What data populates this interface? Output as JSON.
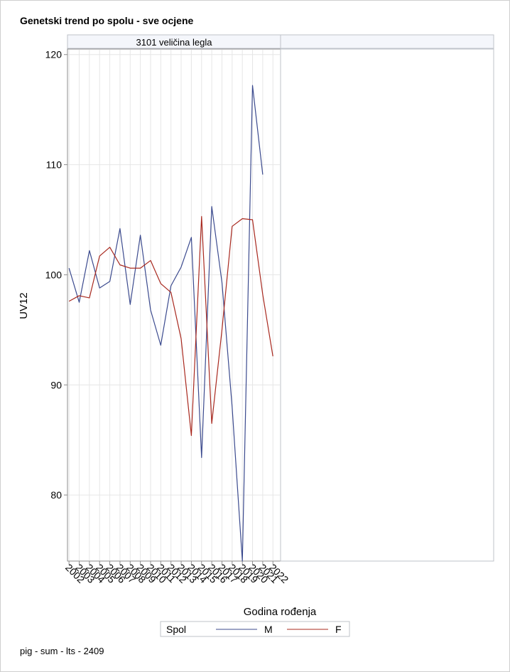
{
  "title": "Genetski trend po spolu - sve ocjene",
  "footnote": "pig - sum - lts - 2409",
  "chart_data": {
    "type": "line",
    "panel_header": "3101 veličina legla",
    "xlabel": "Godina rođenja",
    "ylabel": "UV12",
    "x": [
      2002,
      2003,
      2004,
      2005,
      2006,
      2007,
      2008,
      2009,
      2010,
      2011,
      2012,
      2013,
      2014,
      2015,
      2016,
      2017,
      2018,
      2019,
      2020,
      2021,
      2022
    ],
    "x_tick_labels": [
      "2002",
      "2003",
      "2004",
      "2005",
      "2006",
      "2007",
      "2008",
      "2009",
      "2010",
      "2011",
      "2012",
      "2013",
      "2014",
      "2015",
      "2016",
      "2017",
      "2018",
      "2019",
      "2020",
      "2021",
      "2022"
    ],
    "yticks": [
      80,
      90,
      100,
      110,
      120
    ],
    "ylim": [
      74,
      120.5
    ],
    "xlim": [
      2001.85,
      2022.75
    ],
    "grid": true,
    "legend": {
      "title": "Spol",
      "position": "bottom"
    },
    "series": [
      {
        "name": "M",
        "color": "#3b4a8e",
        "values": [
          100.6,
          97.5,
          102.2,
          98.8,
          99.4,
          104.2,
          97.3,
          103.6,
          96.8,
          93.6,
          99.0,
          100.7,
          103.4,
          83.4,
          106.2,
          99.3,
          88.0,
          74.0,
          117.2,
          109.1,
          null
        ]
      },
      {
        "name": "F",
        "color": "#a8281e",
        "values": [
          97.6,
          98.1,
          97.9,
          101.7,
          102.5,
          100.9,
          100.6,
          100.6,
          101.3,
          99.2,
          98.4,
          94.2,
          85.4,
          105.3,
          86.5,
          95.0,
          104.4,
          105.1,
          105.0,
          98.2,
          92.6
        ]
      }
    ]
  }
}
